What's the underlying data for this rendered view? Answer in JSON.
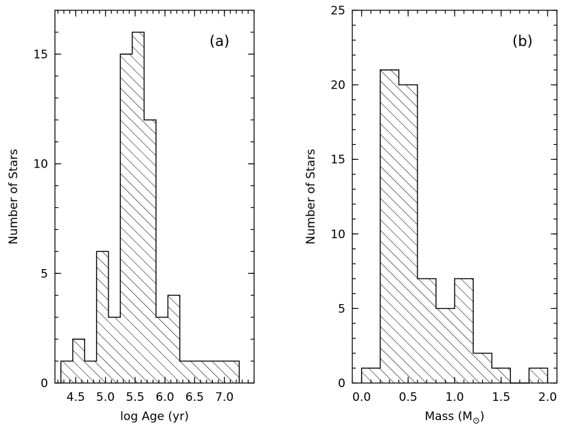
{
  "chart_data": [
    {
      "type": "bar",
      "panel_label": "(a)",
      "xlabel": "log Age (yr)",
      "ylabel": "Number of Stars",
      "xlim": [
        4.15,
        7.5
      ],
      "ylim": [
        0,
        17
      ],
      "xticks": [
        4.5,
        5.0,
        5.5,
        6.0,
        6.5,
        7.0
      ],
      "xtick_labels": [
        "4.5",
        "5.0",
        "5.5",
        "6.0",
        "6.5",
        "7.0"
      ],
      "yticks": [
        0,
        5,
        10,
        15
      ],
      "ytick_labels": [
        "0",
        "5",
        "10",
        "15"
      ],
      "bin_width": 0.2,
      "bin_starts": [
        4.25,
        4.45,
        4.65,
        4.85,
        5.05,
        5.25,
        5.45,
        5.65,
        5.85,
        6.05,
        6.25,
        6.45,
        6.65,
        6.85,
        7.05
      ],
      "values": [
        1,
        2,
        1,
        6,
        3,
        15,
        16,
        12,
        3,
        4,
        1,
        1,
        1,
        1,
        1
      ],
      "fill": "diagonal-hatch"
    },
    {
      "type": "bar",
      "panel_label": "(b)",
      "xlabel": "Mass (M",
      "xlabel_symbol": "⊙",
      "xlabel_close": ")",
      "ylabel": "Number of Stars",
      "xlim": [
        -0.1,
        2.1
      ],
      "ylim": [
        0,
        25
      ],
      "xticks": [
        0.0,
        0.5,
        1.0,
        1.5,
        2.0
      ],
      "xtick_labels": [
        "0.0",
        "0.5",
        "1.0",
        "1.5",
        "2.0"
      ],
      "yticks": [
        0,
        5,
        10,
        15,
        20,
        25
      ],
      "ytick_labels": [
        "0",
        "5",
        "10",
        "15",
        "20",
        "25"
      ],
      "bin_width": 0.2,
      "bin_starts": [
        0.0,
        0.2,
        0.4,
        0.6,
        0.8,
        1.0,
        1.2,
        1.4,
        1.6,
        1.8
      ],
      "values": [
        1,
        21,
        20,
        7,
        5,
        7,
        2,
        1,
        0,
        1
      ],
      "fill": "diagonal-hatch"
    }
  ]
}
